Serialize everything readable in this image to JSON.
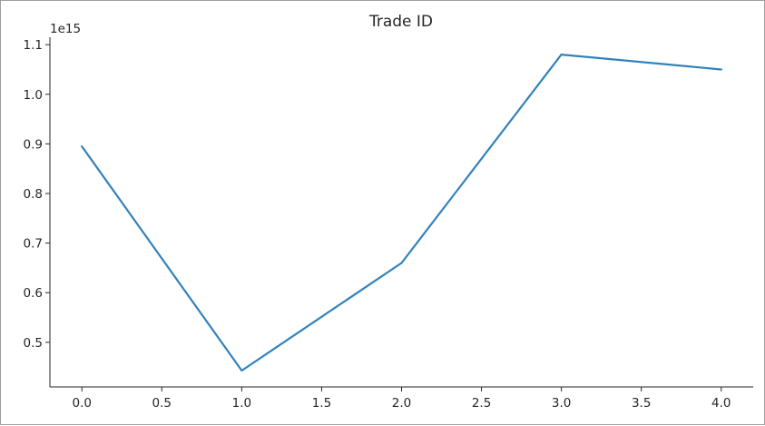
{
  "chart_data": {
    "type": "line",
    "title": "Trade ID",
    "xlabel": "",
    "ylabel": "",
    "y_offset_label": "1e15",
    "xlim": [
      -0.2,
      4.2
    ],
    "ylim": [
      0.41,
      1.115
    ],
    "x_ticks": [
      0.0,
      0.5,
      1.0,
      1.5,
      2.0,
      2.5,
      3.0,
      3.5,
      4.0
    ],
    "x_tick_labels": [
      "0.0",
      "0.5",
      "1.0",
      "1.5",
      "2.0",
      "2.5",
      "3.0",
      "3.5",
      "4.0"
    ],
    "y_ticks": [
      0.5,
      0.6,
      0.7,
      0.8,
      0.9,
      1.0,
      1.1
    ],
    "y_tick_labels": [
      "0.5",
      "0.6",
      "0.7",
      "0.8",
      "0.9",
      "1.0",
      "1.1"
    ],
    "grid": false,
    "series": [
      {
        "x": [
          0,
          1,
          2,
          3,
          4
        ],
        "values": [
          0.895,
          0.443,
          0.66,
          1.08,
          1.05
        ],
        "color": "#3182bd"
      }
    ]
  }
}
